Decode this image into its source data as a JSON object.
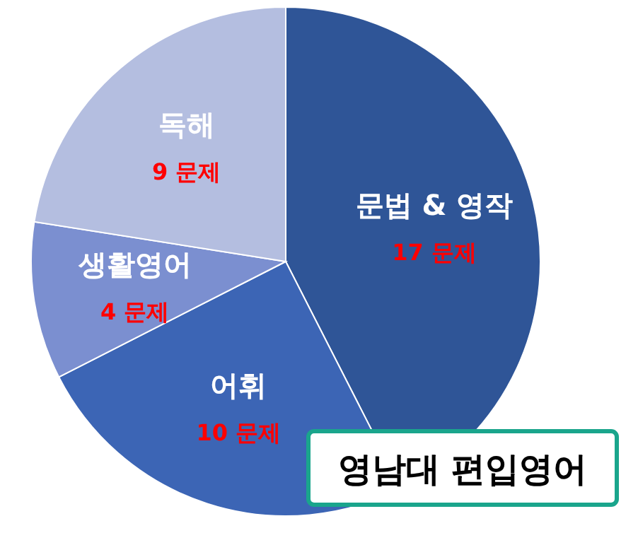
{
  "chart_data": {
    "type": "pie",
    "categories": [
      "문법 & 영작",
      "어휘",
      "생활영어",
      "독해"
    ],
    "values": [
      17,
      10,
      4,
      9
    ],
    "value_labels": [
      "17 문제",
      "10 문제",
      "4 문제",
      "9 문제"
    ],
    "colors": [
      "#2f5597",
      "#3c65b5",
      "#7b8fd0",
      "#b4bee0"
    ],
    "annotations": [
      "영남대 편입영어"
    ]
  }
}
